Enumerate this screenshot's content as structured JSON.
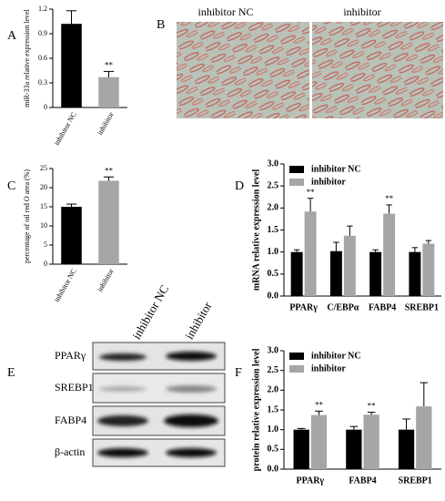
{
  "chart_data": [
    {
      "type": "bar",
      "panel": "A",
      "ylabel": "miR-33a relative expression level",
      "categories": [
        "inhibitor NC",
        "inhibitor"
      ],
      "values": [
        1.02,
        0.37
      ],
      "errors": [
        0.16,
        0.07
      ],
      "colors": [
        "#000000",
        "#a6a6a6"
      ],
      "significance": [
        null,
        "**"
      ],
      "ylim": [
        0,
        1.2
      ],
      "yticks": [
        0,
        0.3,
        0.6,
        0.9,
        1.2
      ]
    },
    {
      "type": "bar",
      "panel": "C",
      "ylabel": "percentage of oil red O area (%)",
      "categories": [
        "inhibitor NC",
        "inhibitor"
      ],
      "values": [
        15,
        21.8
      ],
      "errors": [
        0.7,
        1.0
      ],
      "colors": [
        "#000000",
        "#a6a6a6"
      ],
      "significance": [
        null,
        "**"
      ],
      "ylim": [
        0,
        25
      ],
      "yticks": [
        0,
        5,
        10,
        15,
        20,
        25
      ]
    },
    {
      "type": "grouped-bar",
      "panel": "D",
      "ylabel": "mRNA relative expression level",
      "categories": [
        "PPARγ",
        "C/EBPα",
        "FABP4",
        "SREBP1"
      ],
      "series": [
        {
          "name": "inhibitor NC",
          "color": "#000000",
          "values": [
            1.0,
            1.02,
            1.0,
            1.0
          ],
          "errors": [
            0.05,
            0.2,
            0.05,
            0.1
          ],
          "significance": [
            null,
            null,
            null,
            null
          ]
        },
        {
          "name": "inhibitor",
          "color": "#a6a6a6",
          "values": [
            1.92,
            1.37,
            1.87,
            1.19
          ],
          "errors": [
            0.3,
            0.22,
            0.2,
            0.07
          ],
          "significance": [
            "**",
            null,
            "**",
            null
          ]
        }
      ],
      "ylim": [
        0,
        3
      ],
      "yticks": [
        {
          "value": 0,
          "label": "0.0"
        },
        0.5,
        {
          "value": 1,
          "label": "1.0"
        },
        1.5,
        {
          "value": 2,
          "label": "2.0"
        },
        2.5,
        {
          "value": 3,
          "label": "3.0"
        }
      ]
    },
    {
      "type": "grouped-bar",
      "panel": "F",
      "ylabel": "protein relative expression level",
      "categories": [
        "PPARγ",
        "FABP4",
        "SREBP1"
      ],
      "series": [
        {
          "name": "inhibitor NC",
          "color": "#000000",
          "values": [
            1.0,
            1.0,
            1.0
          ],
          "errors": [
            0.03,
            0.08,
            0.27
          ],
          "significance": [
            null,
            null,
            null
          ]
        },
        {
          "name": "inhibitor",
          "color": "#a6a6a6",
          "values": [
            1.37,
            1.38,
            1.59
          ],
          "errors": [
            0.1,
            0.06,
            0.6
          ],
          "significance": [
            "**",
            "**",
            null
          ]
        }
      ],
      "ylim": [
        0,
        3
      ],
      "yticks": [
        {
          "value": 0,
          "label": "0.0"
        },
        0.5,
        {
          "value": 1,
          "label": "1.0"
        },
        1.5,
        {
          "value": 2,
          "label": "2.0"
        },
        2.5,
        {
          "value": 3,
          "label": "3.0"
        }
      ]
    }
  ],
  "panel_b": {
    "letter": "B",
    "labels": [
      "inhibitor NC",
      "inhibitor"
    ]
  },
  "panel_e": {
    "letter": "E",
    "columns": [
      "inhibitor NC",
      "inhibitor"
    ],
    "rows": [
      "PPARγ",
      "SREBP1",
      "FABP4",
      "β-actin"
    ]
  }
}
